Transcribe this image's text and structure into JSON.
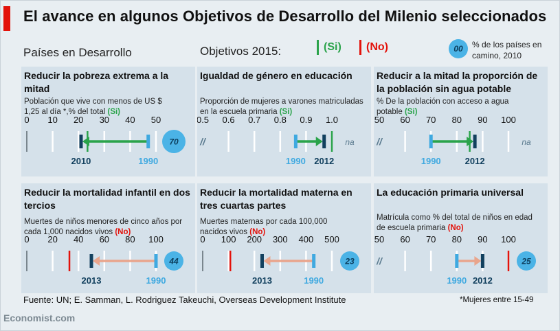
{
  "title": "El avance en algunos Objetivos de Desarrollo del Milenio seleccionados",
  "subtitle_left": "Países en Desarrollo",
  "subtitle_mid": "Objetivos 2015:",
  "legend": {
    "yes_label": "(Si)",
    "no_label": "(No)",
    "circle_value": "00",
    "circle_note": "% de los países en camino, 2010",
    "colors": {
      "yes": "#2aa34a",
      "no": "#e3120b",
      "circle": "#4bb3e6"
    }
  },
  "chart_data": [
    {
      "type": "range",
      "title": "Reducir la pobreza extrema a la mitad",
      "description": "Población que vive con menos de US $ 1,25 al día *,% del total",
      "flag": "(Si)",
      "flag_type": "yes",
      "axis": {
        "ticks": [
          "0",
          "10",
          "20",
          "30",
          "40",
          "50"
        ],
        "min": 0,
        "max": 50,
        "broken": false
      },
      "start": {
        "label": "1990",
        "value": 47
      },
      "end": {
        "label": "2010",
        "value": 21
      },
      "target": 23.5,
      "circle": "70",
      "arrow_color": "#2aa34a"
    },
    {
      "type": "range",
      "title": "Igualdad de género en educación",
      "description": "Proporción de mujeres a varones matriculadas en la escuela primaria",
      "flag": "(Si)",
      "flag_type": "yes",
      "axis": {
        "ticks": [
          "0.5",
          "0.6",
          "0.7",
          "0.8",
          "0.9",
          "1.0"
        ],
        "min": 0.5,
        "max": 1.0,
        "broken": true
      },
      "start": {
        "label": "1990",
        "value": 0.86
      },
      "end": {
        "label": "2012",
        "value": 0.97
      },
      "target": 1.0,
      "circle": "na",
      "arrow_color": "#2aa34a"
    },
    {
      "type": "range",
      "title": "Reducir a la mitad la proporción de la población sin agua potable",
      "description": "% De la población con acceso a agua potable",
      "flag": "(Si)",
      "flag_type": "yes",
      "axis": {
        "ticks": [
          "50",
          "60",
          "70",
          "80",
          "90",
          "100"
        ],
        "min": 50,
        "max": 100,
        "broken": true
      },
      "start": {
        "label": "1990",
        "value": 70
      },
      "end": {
        "label": "2012",
        "value": 87
      },
      "target": 85,
      "circle": "na",
      "arrow_color": "#2aa34a"
    },
    {
      "type": "range",
      "title": "Reducir la mortalidad infantil en dos tercios",
      "description": "Muertes de niños menores de cinco años por cada 1,000 nacidos vivos",
      "flag": "(No)",
      "flag_type": "no",
      "axis": {
        "ticks": [
          "0",
          "20",
          "40",
          "60",
          "80",
          "100"
        ],
        "min": 0,
        "max": 100,
        "broken": false
      },
      "start": {
        "label": "1990",
        "value": 100
      },
      "end": {
        "label": "2013",
        "value": 50
      },
      "target": 33,
      "circle": "44",
      "arrow_color": "#e9a58c"
    },
    {
      "type": "range",
      "title": "Reducir la mortalidad materna en tres cuartas partes",
      "description": "Muertes maternas por cada 100,000 nacidos vivos",
      "flag": "(No)",
      "flag_type": "no",
      "axis": {
        "ticks": [
          "0",
          "100",
          "200",
          "300",
          "400",
          "500"
        ],
        "min": 0,
        "max": 500,
        "broken": false
      },
      "start": {
        "label": "1990",
        "value": 430
      },
      "end": {
        "label": "2013",
        "value": 230
      },
      "target": 107,
      "circle": "23",
      "arrow_color": "#e9a58c"
    },
    {
      "type": "range",
      "title": "La educación primaria universal",
      "description": "Matrícula como % del total de niños en edad de escuela primaria",
      "flag": "(No)",
      "flag_type": "no",
      "axis": {
        "ticks": [
          "50",
          "60",
          "70",
          "80",
          "90",
          "100"
        ],
        "min": 50,
        "max": 100,
        "broken": true
      },
      "start": {
        "label": "1990",
        "value": 80
      },
      "end": {
        "label": "2012",
        "value": 90
      },
      "target": 100,
      "circle": "25",
      "arrow_color": "#e9a58c"
    }
  ],
  "source": "Fuente: UN; E. Samman, L. Rodriguez Takeuchi, Overseas Development Institute",
  "footnote": "*Mujeres entre 15-49",
  "brand": "Economist.com"
}
